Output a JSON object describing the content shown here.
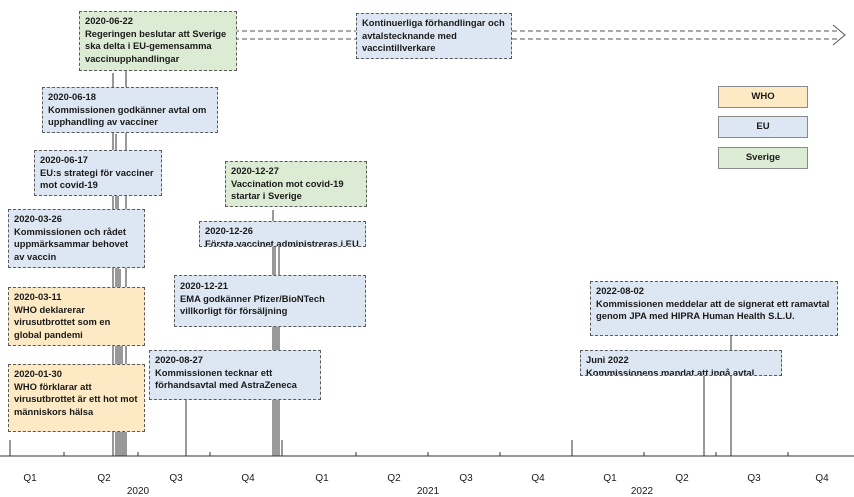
{
  "events": [
    {
      "id": "e1",
      "date": "2020-06-22",
      "text": "Regeringen beslutar att Sverige ska delta i EU-gemensamma vaccinupphandlingar",
      "category": "Sverige"
    },
    {
      "id": "e2",
      "date": "",
      "text": "Kontinuerliga förhandlingar och avtalstecknande med vaccintillverkare",
      "category": "EU"
    },
    {
      "id": "e3",
      "date": "2020-06-18",
      "text": "Kommissionen godkänner avtal om upphandling av vacciner",
      "category": "EU"
    },
    {
      "id": "e4",
      "date": "2020-06-17",
      "text": "EU:s strategi för vacciner mot covid-19",
      "category": "EU"
    },
    {
      "id": "e5",
      "date": "2020-12-27",
      "text": "Vaccination mot covid-19 startar i Sverige",
      "category": "Sverige"
    },
    {
      "id": "e6",
      "date": "2020-03-26",
      "text": "Kommissionen och rådet uppmärksammar behovet av vaccin",
      "category": "EU"
    },
    {
      "id": "e7",
      "date": "2020-12-26",
      "text": "Första vaccinet administreras i EU",
      "category": "EU"
    },
    {
      "id": "e8",
      "date": "2020-03-11",
      "text": "WHO deklarerar virusutbrottet som en global pandemi",
      "category": "WHO"
    },
    {
      "id": "e9",
      "date": "2020-12-21",
      "text": "EMA godkänner Pfizer/BioNTech villkorligt för försäljning",
      "category": "EU"
    },
    {
      "id": "e10",
      "date": "2022-08-02",
      "text": "Kommissionen meddelar att de signerat ett ramavtal genom JPA med HIPRA Human Health S.L.U.",
      "category": "EU"
    },
    {
      "id": "e11",
      "date": "2020-08-27",
      "text": "Kommissionen tecknar ett förhandsavtal med AstraZeneca",
      "category": "EU"
    },
    {
      "id": "e12",
      "date": "Juni 2022",
      "text": "Kommissionens mandat att ingå avtal med nya vaccintillverkare upphör",
      "category": "EU"
    },
    {
      "id": "e13",
      "date": "2020-01-30",
      "text": "WHO förklarar att virusutbrottet är ett hot mot människors hälsa",
      "category": "WHO"
    }
  ],
  "legend": [
    {
      "label": "WHO",
      "color": "#fde9c4"
    },
    {
      "label": "EU",
      "color": "#dde7f3"
    },
    {
      "label": "Sverige",
      "color": "#dcebd3"
    }
  ],
  "axis": {
    "quarters": [
      "Q1",
      "Q2",
      "Q3",
      "Q4",
      "Q1",
      "Q2",
      "Q3",
      "Q4",
      "Q1",
      "Q2",
      "Q3",
      "Q4"
    ],
    "years": [
      "2020",
      "2021",
      "2022"
    ]
  }
}
